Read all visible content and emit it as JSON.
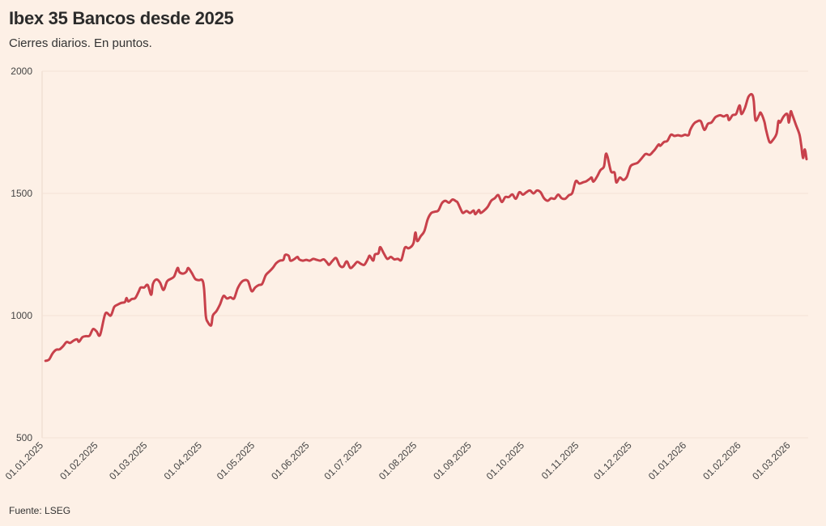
{
  "header": {
    "title": "Ibex 35 Bancos desde 2025",
    "subtitle": "Cierres diarios. En puntos."
  },
  "footer": {
    "source": "Fuente: LSEG"
  },
  "chart_data": {
    "type": "line",
    "title": "Ibex 35 Bancos desde 2025",
    "subtitle": "Cierres diarios. En puntos.",
    "xlabel": "",
    "ylabel": "",
    "ylim": [
      500,
      2000
    ],
    "yticks": [
      500,
      1000,
      1500,
      2000
    ],
    "xlim": [
      0,
      430
    ],
    "grid": true,
    "x_ticks": [
      {
        "label": "01.01.2025",
        "day": 0
      },
      {
        "label": "01.02.2025",
        "day": 31
      },
      {
        "label": "01.03.2025",
        "day": 59
      },
      {
        "label": "01.04.2025",
        "day": 90
      },
      {
        "label": "01.05.2025",
        "day": 120
      },
      {
        "label": "01.06.2025",
        "day": 151
      },
      {
        "label": "01.07.2025",
        "day": 181
      },
      {
        "label": "01.08.2025",
        "day": 212
      },
      {
        "label": "01.09.2025",
        "day": 243
      },
      {
        "label": "01.10.2025",
        "day": 273
      },
      {
        "label": "01.11.2025",
        "day": 304
      },
      {
        "label": "01.12.2025",
        "day": 334
      },
      {
        "label": "01.01.2026",
        "day": 365
      },
      {
        "label": "01.02.2026",
        "day": 396
      },
      {
        "label": "01.03.2026",
        "day": 424
      }
    ],
    "series": [
      {
        "name": "Ibex 35 Bancos",
        "color": "#c8414b",
        "x_unit": "days since 01.01.2025",
        "points": [
          [
            1,
            815
          ],
          [
            3,
            820
          ],
          [
            5,
            845
          ],
          [
            7,
            860
          ],
          [
            9,
            862
          ],
          [
            11,
            875
          ],
          [
            13,
            892
          ],
          [
            15,
            888
          ],
          [
            17,
            898
          ],
          [
            19,
            903
          ],
          [
            20,
            893
          ],
          [
            22,
            912
          ],
          [
            24,
            916
          ],
          [
            26,
            918
          ],
          [
            28,
            945
          ],
          [
            30,
            935
          ],
          [
            32,
            921
          ],
          [
            35,
            1008
          ],
          [
            38,
            1000
          ],
          [
            40,
            1035
          ],
          [
            42,
            1045
          ],
          [
            44,
            1052
          ],
          [
            46,
            1055
          ],
          [
            47,
            1072
          ],
          [
            48,
            1058
          ],
          [
            50,
            1068
          ],
          [
            52,
            1072
          ],
          [
            54,
            1100
          ],
          [
            55,
            1115
          ],
          [
            57,
            1115
          ],
          [
            59,
            1125
          ],
          [
            61,
            1085
          ],
          [
            62,
            1130
          ],
          [
            64,
            1148
          ],
          [
            66,
            1135
          ],
          [
            68,
            1105
          ],
          [
            70,
            1140
          ],
          [
            72,
            1150
          ],
          [
            74,
            1160
          ],
          [
            76,
            1195
          ],
          [
            77,
            1178
          ],
          [
            79,
            1172
          ],
          [
            81,
            1180
          ],
          [
            82,
            1195
          ],
          [
            84,
            1175
          ],
          [
            86,
            1150
          ],
          [
            88,
            1145
          ],
          [
            90,
            1145
          ],
          [
            91,
            1110
          ],
          [
            92,
            1000
          ],
          [
            93,
            975
          ],
          [
            95,
            960
          ],
          [
            96,
            1000
          ],
          [
            98,
            1018
          ],
          [
            100,
            1045
          ],
          [
            102,
            1080
          ],
          [
            104,
            1070
          ],
          [
            106,
            1075
          ],
          [
            108,
            1070
          ],
          [
            110,
            1110
          ],
          [
            112,
            1135
          ],
          [
            114,
            1145
          ],
          [
            116,
            1140
          ],
          [
            118,
            1100
          ],
          [
            120,
            1115
          ],
          [
            122,
            1125
          ],
          [
            124,
            1130
          ],
          [
            126,
            1165
          ],
          [
            128,
            1180
          ],
          [
            130,
            1195
          ],
          [
            132,
            1215
          ],
          [
            134,
            1225
          ],
          [
            136,
            1228
          ],
          [
            137,
            1248
          ],
          [
            139,
            1245
          ],
          [
            140,
            1225
          ],
          [
            142,
            1230
          ],
          [
            144,
            1240
          ],
          [
            145,
            1230
          ],
          [
            147,
            1225
          ],
          [
            149,
            1228
          ],
          [
            151,
            1225
          ],
          [
            153,
            1232
          ],
          [
            155,
            1228
          ],
          [
            157,
            1225
          ],
          [
            159,
            1230
          ],
          [
            161,
            1215
          ],
          [
            162,
            1208
          ],
          [
            164,
            1225
          ],
          [
            166,
            1235
          ],
          [
            168,
            1205
          ],
          [
            170,
            1200
          ],
          [
            172,
            1222
          ],
          [
            174,
            1195
          ],
          [
            176,
            1205
          ],
          [
            178,
            1220
          ],
          [
            180,
            1212
          ],
          [
            182,
            1208
          ],
          [
            184,
            1232
          ],
          [
            185,
            1245
          ],
          [
            187,
            1225
          ],
          [
            188,
            1250
          ],
          [
            190,
            1255
          ],
          [
            191,
            1280
          ],
          [
            193,
            1255
          ],
          [
            195,
            1232
          ],
          [
            197,
            1240
          ],
          [
            199,
            1230
          ],
          [
            201,
            1232
          ],
          [
            203,
            1228
          ],
          [
            205,
            1278
          ],
          [
            207,
            1275
          ],
          [
            209,
            1285
          ],
          [
            210,
            1300
          ],
          [
            211,
            1340
          ],
          [
            212,
            1305
          ],
          [
            214,
            1325
          ],
          [
            216,
            1345
          ],
          [
            218,
            1395
          ],
          [
            220,
            1420
          ],
          [
            222,
            1425
          ],
          [
            224,
            1430
          ],
          [
            226,
            1460
          ],
          [
            228,
            1470
          ],
          [
            230,
            1462
          ],
          [
            232,
            1475
          ],
          [
            234,
            1468
          ],
          [
            235,
            1462
          ],
          [
            237,
            1430
          ],
          [
            238,
            1420
          ],
          [
            240,
            1428
          ],
          [
            242,
            1420
          ],
          [
            244,
            1430
          ],
          [
            245,
            1415
          ],
          [
            247,
            1432
          ],
          [
            248,
            1420
          ],
          [
            250,
            1430
          ],
          [
            252,
            1445
          ],
          [
            254,
            1470
          ],
          [
            256,
            1480
          ],
          [
            258,
            1493
          ],
          [
            260,
            1465
          ],
          [
            262,
            1485
          ],
          [
            264,
            1485
          ],
          [
            266,
            1496
          ],
          [
            268,
            1478
          ],
          [
            270,
            1505
          ],
          [
            272,
            1495
          ],
          [
            274,
            1505
          ],
          [
            276,
            1512
          ],
          [
            278,
            1500
          ],
          [
            280,
            1512
          ],
          [
            282,
            1505
          ],
          [
            284,
            1480
          ],
          [
            286,
            1470
          ],
          [
            288,
            1480
          ],
          [
            290,
            1478
          ],
          [
            292,
            1495
          ],
          [
            294,
            1480
          ],
          [
            296,
            1478
          ],
          [
            298,
            1492
          ],
          [
            300,
            1502
          ],
          [
            302,
            1550
          ],
          [
            304,
            1540
          ],
          [
            306,
            1545
          ],
          [
            308,
            1550
          ],
          [
            310,
            1560
          ],
          [
            311,
            1565
          ],
          [
            312,
            1548
          ],
          [
            314,
            1568
          ],
          [
            316,
            1595
          ],
          [
            318,
            1610
          ],
          [
            319,
            1660
          ],
          [
            320,
            1650
          ],
          [
            322,
            1590
          ],
          [
            324,
            1585
          ],
          [
            325,
            1545
          ],
          [
            327,
            1565
          ],
          [
            329,
            1555
          ],
          [
            331,
            1568
          ],
          [
            333,
            1610
          ],
          [
            335,
            1620
          ],
          [
            337,
            1625
          ],
          [
            339,
            1640
          ],
          [
            341,
            1658
          ],
          [
            342,
            1662
          ],
          [
            344,
            1658
          ],
          [
            346,
            1672
          ],
          [
            347,
            1680
          ],
          [
            349,
            1700
          ],
          [
            350,
            1695
          ],
          [
            352,
            1710
          ],
          [
            354,
            1715
          ],
          [
            356,
            1740
          ],
          [
            358,
            1735
          ],
          [
            360,
            1738
          ],
          [
            362,
            1735
          ],
          [
            364,
            1740
          ],
          [
            366,
            1738
          ],
          [
            367,
            1760
          ],
          [
            369,
            1785
          ],
          [
            371,
            1795
          ],
          [
            373,
            1795
          ],
          [
            375,
            1760
          ],
          [
            377,
            1785
          ],
          [
            379,
            1790
          ],
          [
            381,
            1810
          ],
          [
            382,
            1815
          ],
          [
            384,
            1820
          ],
          [
            386,
            1815
          ],
          [
            388,
            1820
          ],
          [
            389,
            1800
          ],
          [
            391,
            1820
          ],
          [
            393,
            1825
          ],
          [
            395,
            1860
          ],
          [
            396,
            1825
          ],
          [
            398,
            1850
          ],
          [
            400,
            1895
          ],
          [
            402,
            1905
          ],
          [
            403,
            1880
          ],
          [
            404,
            1800
          ],
          [
            406,
            1820
          ],
          [
            407,
            1830
          ],
          [
            409,
            1795
          ],
          [
            410,
            1760
          ],
          [
            412,
            1710
          ],
          [
            414,
            1720
          ],
          [
            416,
            1745
          ],
          [
            417,
            1795
          ],
          [
            418,
            1790
          ],
          [
            420,
            1815
          ],
          [
            422,
            1825
          ],
          [
            423,
            1790
          ],
          [
            424,
            1835
          ],
          [
            425,
            1820
          ],
          [
            427,
            1780
          ],
          [
            429,
            1740
          ],
          [
            430,
            1695
          ],
          [
            431,
            1645
          ],
          [
            432,
            1680
          ],
          [
            433,
            1640
          ]
        ]
      }
    ]
  }
}
